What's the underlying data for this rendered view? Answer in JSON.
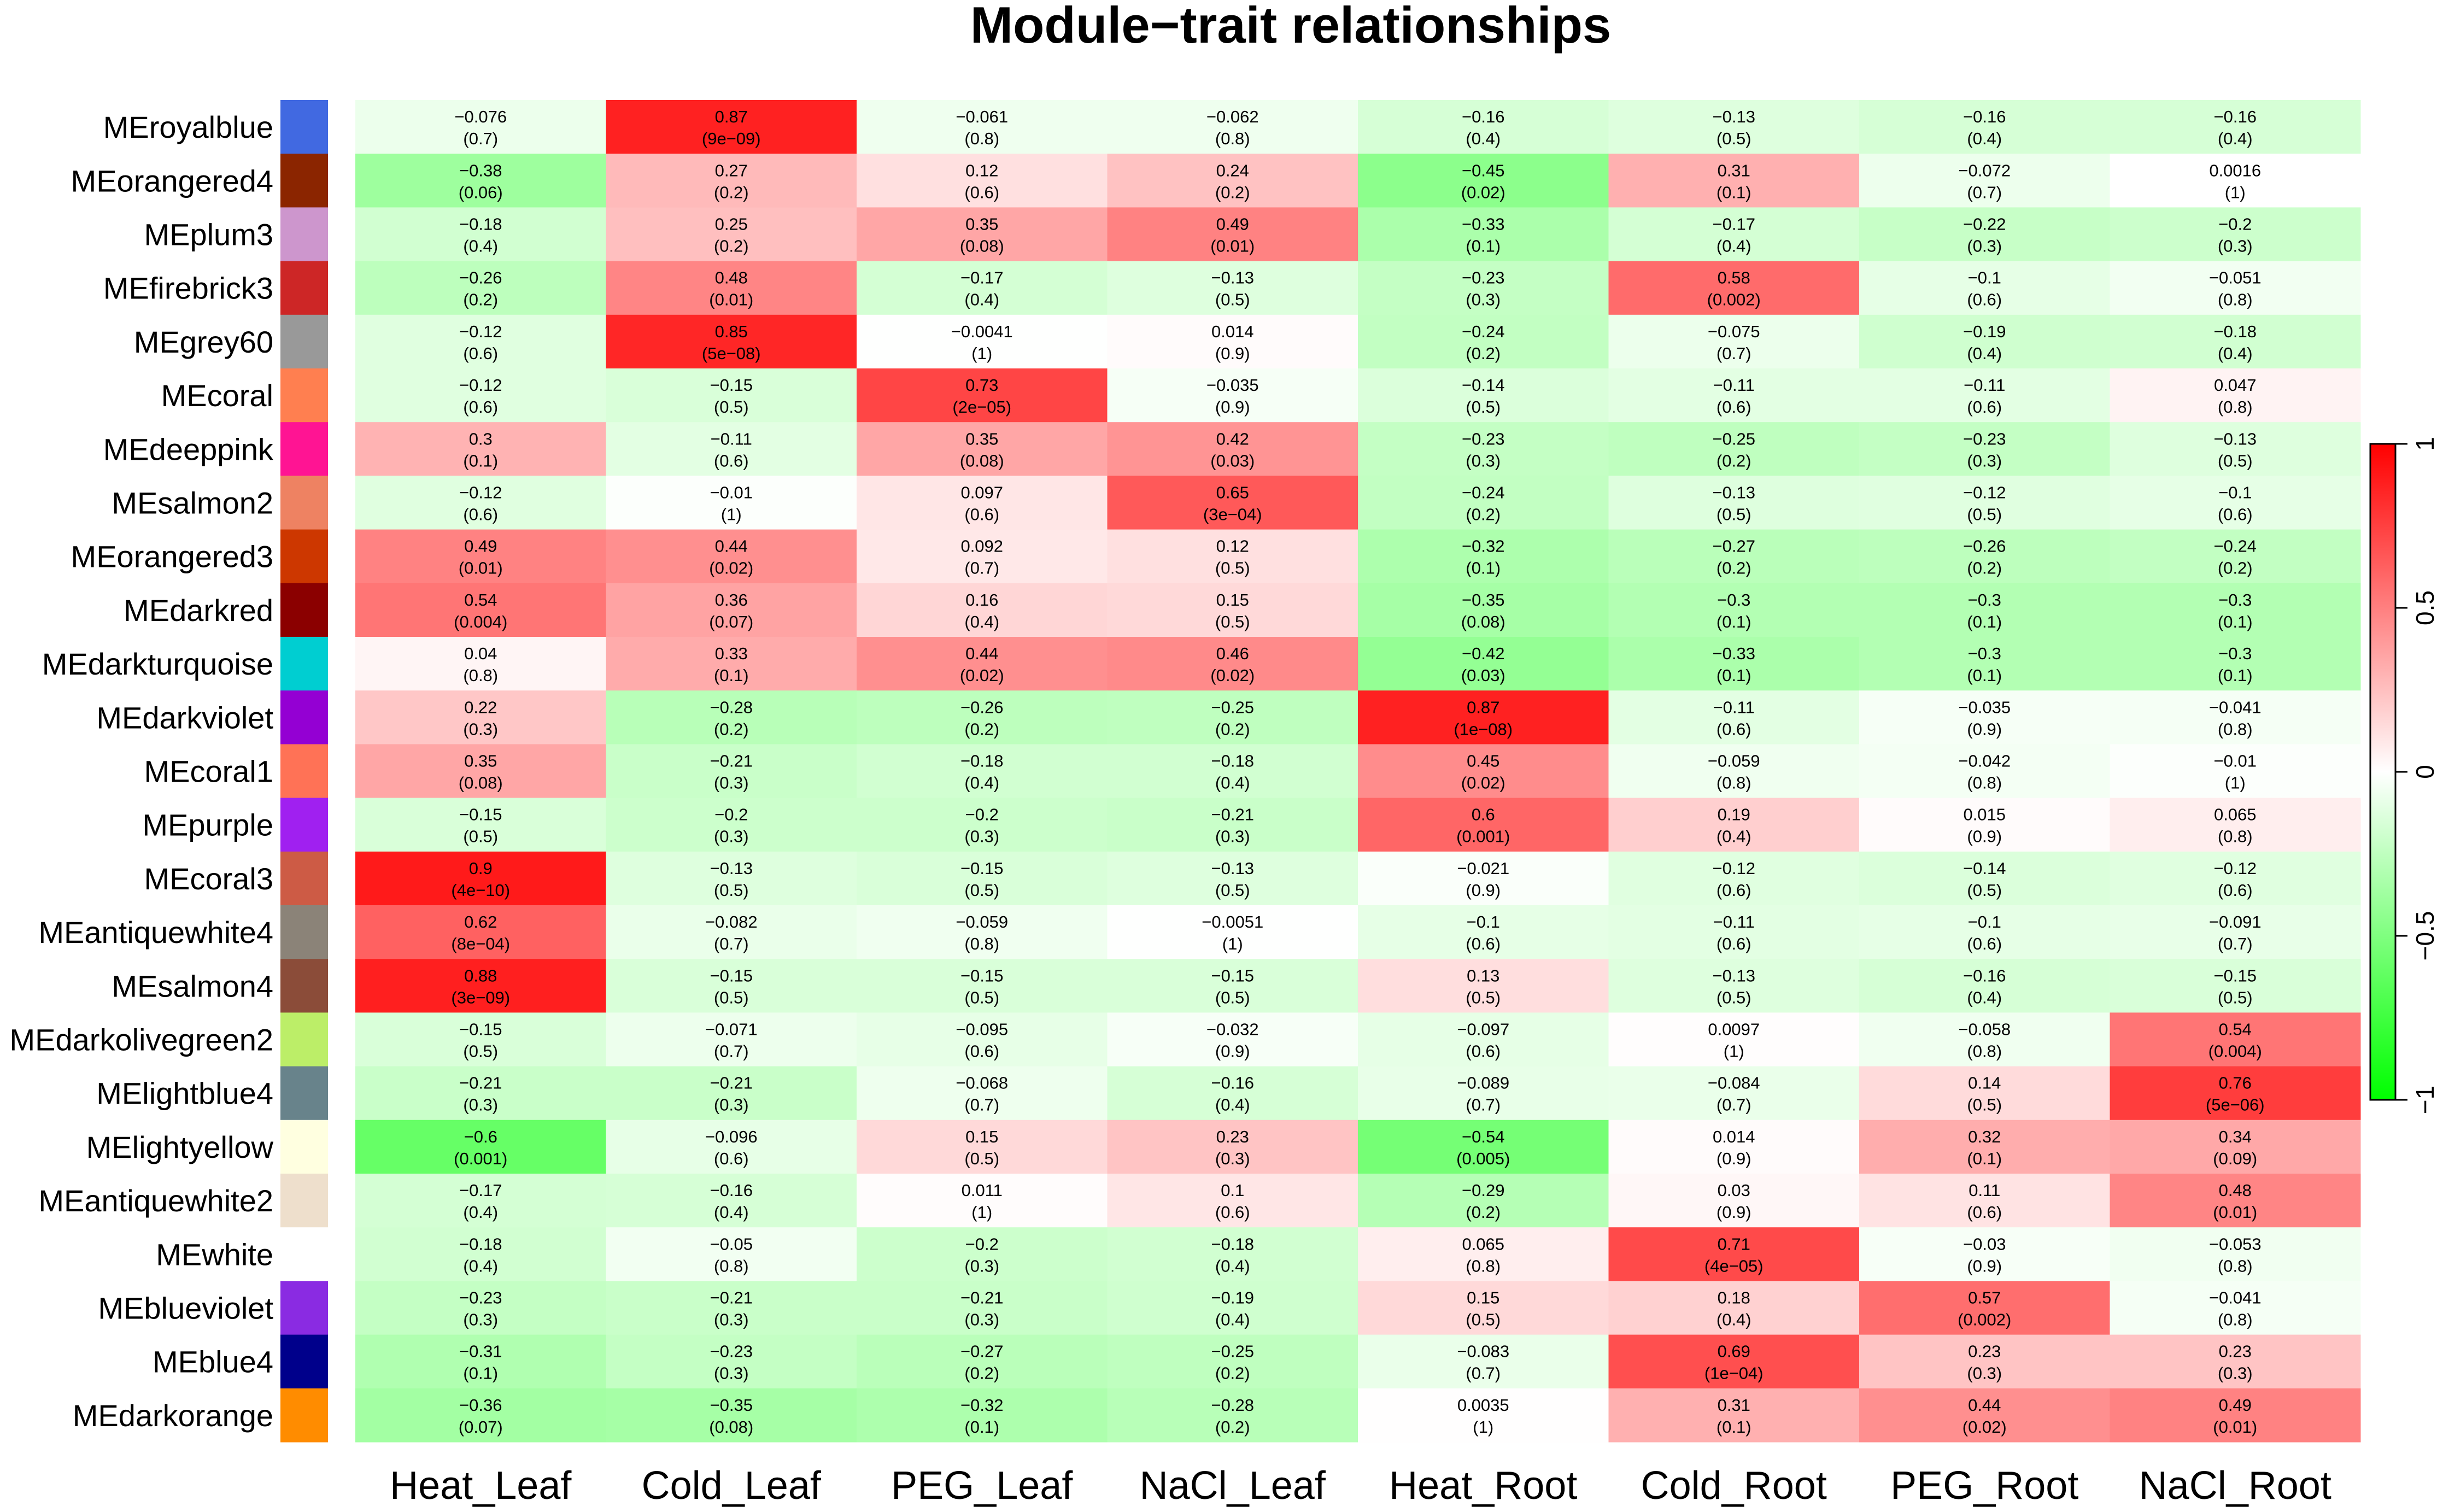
{
  "chart_data": {
    "type": "heatmap",
    "title": "Module−trait relationships",
    "columns": [
      "Heat_Leaf",
      "Cold_Leaf",
      "PEG_Leaf",
      "NaCl_Leaf",
      "Heat_Root",
      "Cold_Root",
      "PEG_Root",
      "NaCl_Root"
    ],
    "rows": [
      {
        "name": "MEroyalblue",
        "color": "#4169e1",
        "values": [
          "−0.076",
          "0.87",
          "−0.061",
          "−0.062",
          "−0.16",
          "−0.13",
          "−0.16",
          "−0.16"
        ],
        "pvalues": [
          "(0.7)",
          "(9e−09)",
          "(0.8)",
          "(0.8)",
          "(0.4)",
          "(0.5)",
          "(0.4)",
          "(0.4)"
        ]
      },
      {
        "name": "MEorangered4",
        "color": "#8b2500",
        "values": [
          "−0.38",
          "0.27",
          "0.12",
          "0.24",
          "−0.45",
          "0.31",
          "−0.072",
          "0.0016"
        ],
        "pvalues": [
          "(0.06)",
          "(0.2)",
          "(0.6)",
          "(0.2)",
          "(0.02)",
          "(0.1)",
          "(0.7)",
          "(1)"
        ]
      },
      {
        "name": "MEplum3",
        "color": "#cd96cd",
        "values": [
          "−0.18",
          "0.25",
          "0.35",
          "0.49",
          "−0.33",
          "−0.17",
          "−0.22",
          "−0.2"
        ],
        "pvalues": [
          "(0.4)",
          "(0.2)",
          "(0.08)",
          "(0.01)",
          "(0.1)",
          "(0.4)",
          "(0.3)",
          "(0.3)"
        ]
      },
      {
        "name": "MEfirebrick3",
        "color": "#cd2626",
        "values": [
          "−0.26",
          "0.48",
          "−0.17",
          "−0.13",
          "−0.23",
          "0.58",
          "−0.1",
          "−0.051"
        ],
        "pvalues": [
          "(0.2)",
          "(0.01)",
          "(0.4)",
          "(0.5)",
          "(0.3)",
          "(0.002)",
          "(0.6)",
          "(0.8)"
        ]
      },
      {
        "name": "MEgrey60",
        "color": "#999999",
        "values": [
          "−0.12",
          "0.85",
          "−0.0041",
          "0.014",
          "−0.24",
          "−0.075",
          "−0.19",
          "−0.18"
        ],
        "pvalues": [
          "(0.6)",
          "(5e−08)",
          "(1)",
          "(0.9)",
          "(0.2)",
          "(0.7)",
          "(0.4)",
          "(0.4)"
        ]
      },
      {
        "name": "MEcoral",
        "color": "#ff7f50",
        "values": [
          "−0.12",
          "−0.15",
          "0.73",
          "−0.035",
          "−0.14",
          "−0.11",
          "−0.11",
          "0.047"
        ],
        "pvalues": [
          "(0.6)",
          "(0.5)",
          "(2e−05)",
          "(0.9)",
          "(0.5)",
          "(0.6)",
          "(0.6)",
          "(0.8)"
        ]
      },
      {
        "name": "MEdeeppink",
        "color": "#ff1493",
        "values": [
          "0.3",
          "−0.11",
          "0.35",
          "0.42",
          "−0.23",
          "−0.25",
          "−0.23",
          "−0.13"
        ],
        "pvalues": [
          "(0.1)",
          "(0.6)",
          "(0.08)",
          "(0.03)",
          "(0.3)",
          "(0.2)",
          "(0.3)",
          "(0.5)"
        ]
      },
      {
        "name": "MEsalmon2",
        "color": "#ee8262",
        "values": [
          "−0.12",
          "−0.01",
          "0.097",
          "0.65",
          "−0.24",
          "−0.13",
          "−0.12",
          "−0.1"
        ],
        "pvalues": [
          "(0.6)",
          "(1)",
          "(0.6)",
          "(3e−04)",
          "(0.2)",
          "(0.5)",
          "(0.5)",
          "(0.6)"
        ]
      },
      {
        "name": "MEorangered3",
        "color": "#cd3700",
        "values": [
          "0.49",
          "0.44",
          "0.092",
          "0.12",
          "−0.32",
          "−0.27",
          "−0.26",
          "−0.24"
        ],
        "pvalues": [
          "(0.01)",
          "(0.02)",
          "(0.7)",
          "(0.5)",
          "(0.1)",
          "(0.2)",
          "(0.2)",
          "(0.2)"
        ]
      },
      {
        "name": "MEdarkred",
        "color": "#8b0000",
        "values": [
          "0.54",
          "0.36",
          "0.16",
          "0.15",
          "−0.35",
          "−0.3",
          "−0.3",
          "−0.3"
        ],
        "pvalues": [
          "(0.004)",
          "(0.07)",
          "(0.4)",
          "(0.5)",
          "(0.08)",
          "(0.1)",
          "(0.1)",
          "(0.1)"
        ]
      },
      {
        "name": "MEdarkturquoise",
        "color": "#00ced1",
        "values": [
          "0.04",
          "0.33",
          "0.44",
          "0.46",
          "−0.42",
          "−0.33",
          "−0.3",
          "−0.3"
        ],
        "pvalues": [
          "(0.8)",
          "(0.1)",
          "(0.02)",
          "(0.02)",
          "(0.03)",
          "(0.1)",
          "(0.1)",
          "(0.1)"
        ]
      },
      {
        "name": "MEdarkviolet",
        "color": "#9400d3",
        "values": [
          "0.22",
          "−0.28",
          "−0.26",
          "−0.25",
          "0.87",
          "−0.11",
          "−0.035",
          "−0.041"
        ],
        "pvalues": [
          "(0.3)",
          "(0.2)",
          "(0.2)",
          "(0.2)",
          "(1e−08)",
          "(0.6)",
          "(0.9)",
          "(0.8)"
        ]
      },
      {
        "name": "MEcoral1",
        "color": "#ff7256",
        "values": [
          "0.35",
          "−0.21",
          "−0.18",
          "−0.18",
          "0.45",
          "−0.059",
          "−0.042",
          "−0.01"
        ],
        "pvalues": [
          "(0.08)",
          "(0.3)",
          "(0.4)",
          "(0.4)",
          "(0.02)",
          "(0.8)",
          "(0.8)",
          "(1)"
        ]
      },
      {
        "name": "MEpurple",
        "color": "#a020f0",
        "values": [
          "−0.15",
          "−0.2",
          "−0.2",
          "−0.21",
          "0.6",
          "0.19",
          "0.015",
          "0.065"
        ],
        "pvalues": [
          "(0.5)",
          "(0.3)",
          "(0.3)",
          "(0.3)",
          "(0.001)",
          "(0.4)",
          "(0.9)",
          "(0.8)"
        ]
      },
      {
        "name": "MEcoral3",
        "color": "#cd5b45",
        "values": [
          "0.9",
          "−0.13",
          "−0.15",
          "−0.13",
          "−0.021",
          "−0.12",
          "−0.14",
          "−0.12"
        ],
        "pvalues": [
          "(4e−10)",
          "(0.5)",
          "(0.5)",
          "(0.5)",
          "(0.9)",
          "(0.6)",
          "(0.5)",
          "(0.6)"
        ]
      },
      {
        "name": "MEantiquewhite4",
        "color": "#8b8378",
        "values": [
          "0.62",
          "−0.082",
          "−0.059",
          "−0.0051",
          "−0.1",
          "−0.11",
          "−0.1",
          "−0.091"
        ],
        "pvalues": [
          "(8e−04)",
          "(0.7)",
          "(0.8)",
          "(1)",
          "(0.6)",
          "(0.6)",
          "(0.6)",
          "(0.7)"
        ]
      },
      {
        "name": "MEsalmon4",
        "color": "#8b4c39",
        "values": [
          "0.88",
          "−0.15",
          "−0.15",
          "−0.15",
          "0.13",
          "−0.13",
          "−0.16",
          "−0.15"
        ],
        "pvalues": [
          "(3e−09)",
          "(0.5)",
          "(0.5)",
          "(0.5)",
          "(0.5)",
          "(0.5)",
          "(0.4)",
          "(0.5)"
        ]
      },
      {
        "name": "MEdarkolivegreen2",
        "color": "#bcee68",
        "values": [
          "−0.15",
          "−0.071",
          "−0.095",
          "−0.032",
          "−0.097",
          "0.0097",
          "−0.058",
          "0.54"
        ],
        "pvalues": [
          "(0.5)",
          "(0.7)",
          "(0.6)",
          "(0.9)",
          "(0.6)",
          "(1)",
          "(0.8)",
          "(0.004)"
        ]
      },
      {
        "name": "MElightblue4",
        "color": "#68838b",
        "values": [
          "−0.21",
          "−0.21",
          "−0.068",
          "−0.16",
          "−0.089",
          "−0.084",
          "0.14",
          "0.76"
        ],
        "pvalues": [
          "(0.3)",
          "(0.3)",
          "(0.7)",
          "(0.4)",
          "(0.7)",
          "(0.7)",
          "(0.5)",
          "(5e−06)"
        ]
      },
      {
        "name": "MElightyellow",
        "color": "#ffffe0",
        "values": [
          "−0.6",
          "−0.096",
          "0.15",
          "0.23",
          "−0.54",
          "0.014",
          "0.32",
          "0.34"
        ],
        "pvalues": [
          "(0.001)",
          "(0.6)",
          "(0.5)",
          "(0.3)",
          "(0.005)",
          "(0.9)",
          "(0.1)",
          "(0.09)"
        ]
      },
      {
        "name": "MEantiquewhite2",
        "color": "#eedfcc",
        "values": [
          "−0.17",
          "−0.16",
          "0.011",
          "0.1",
          "−0.29",
          "0.03",
          "0.11",
          "0.48"
        ],
        "pvalues": [
          "(0.4)",
          "(0.4)",
          "(1)",
          "(0.6)",
          "(0.2)",
          "(0.9)",
          "(0.6)",
          "(0.01)"
        ]
      },
      {
        "name": "MEwhite",
        "color": "#ffffff",
        "values": [
          "−0.18",
          "−0.05",
          "−0.2",
          "−0.18",
          "0.065",
          "0.71",
          "−0.03",
          "−0.053"
        ],
        "pvalues": [
          "(0.4)",
          "(0.8)",
          "(0.3)",
          "(0.4)",
          "(0.8)",
          "(4e−05)",
          "(0.9)",
          "(0.8)"
        ]
      },
      {
        "name": "MEblueviolet",
        "color": "#8a2be2",
        "values": [
          "−0.23",
          "−0.21",
          "−0.21",
          "−0.19",
          "0.15",
          "0.18",
          "0.57",
          "−0.041"
        ],
        "pvalues": [
          "(0.3)",
          "(0.3)",
          "(0.3)",
          "(0.4)",
          "(0.5)",
          "(0.4)",
          "(0.002)",
          "(0.8)"
        ]
      },
      {
        "name": "MEblue4",
        "color": "#00008b",
        "values": [
          "−0.31",
          "−0.23",
          "−0.27",
          "−0.25",
          "−0.083",
          "0.69",
          "0.23",
          "0.23"
        ],
        "pvalues": [
          "(0.1)",
          "(0.3)",
          "(0.2)",
          "(0.2)",
          "(0.7)",
          "(1e−04)",
          "(0.3)",
          "(0.3)"
        ]
      },
      {
        "name": "MEdarkorange",
        "color": "#ff8c00",
        "values": [
          "−0.36",
          "−0.35",
          "−0.32",
          "−0.28",
          "0.0035",
          "0.31",
          "0.44",
          "0.49"
        ],
        "pvalues": [
          "(0.07)",
          "(0.08)",
          "(0.1)",
          "(0.2)",
          "(1)",
          "(0.1)",
          "(0.02)",
          "(0.01)"
        ]
      }
    ],
    "color_scale": {
      "min": -1,
      "max": 1,
      "low": "#00ff00",
      "mid": "#ffffff",
      "high": "#ff0000"
    },
    "legend": {
      "ticks": [
        "−1",
        "−0.5",
        "0",
        "0.5",
        "1"
      ],
      "tick_values": [
        -1,
        -0.5,
        0,
        0.5,
        1
      ],
      "placement": "right"
    }
  }
}
